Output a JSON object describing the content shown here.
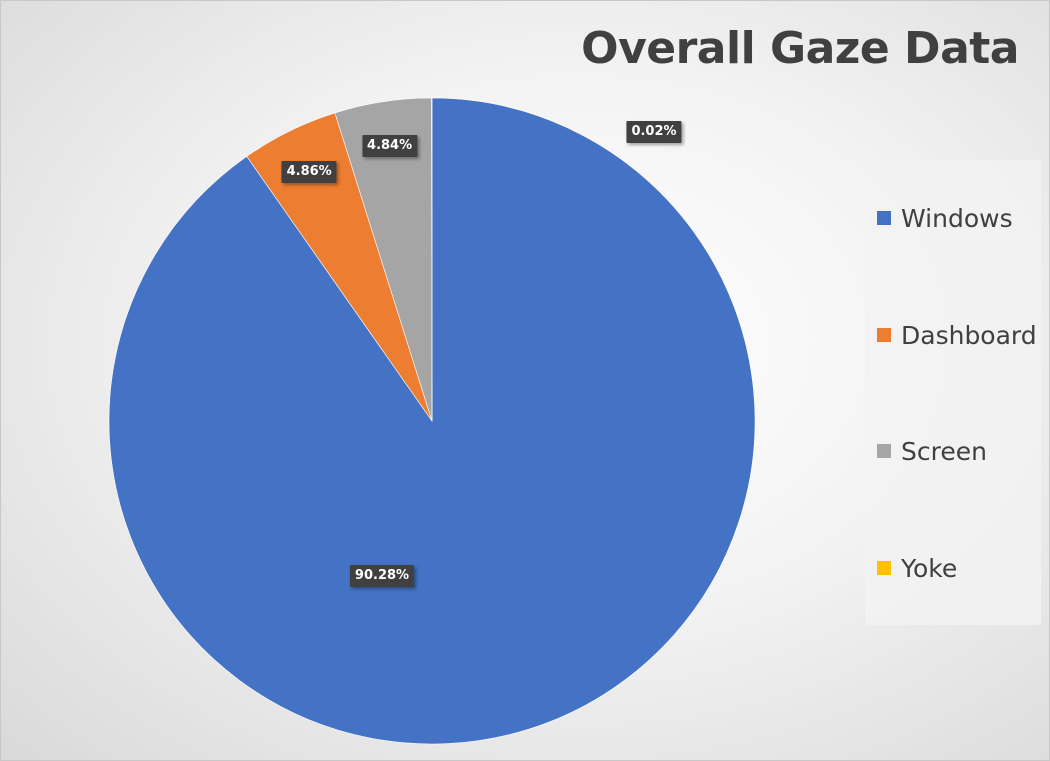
{
  "chart_data": {
    "type": "pie",
    "title": "Overall Gaze Data",
    "categories": [
      "Windows",
      "Dashboard",
      "Screen",
      "Yoke"
    ],
    "values": [
      90.28,
      4.86,
      4.84,
      0.02
    ],
    "value_labels": [
      "90.28%",
      "4.86%",
      "4.84%",
      "0.02%"
    ],
    "colors": [
      "#4472C4",
      "#ED7D31",
      "#A5A5A5",
      "#FFC000"
    ],
    "start_angle_deg": 0,
    "direction": "clockwise",
    "legend_position": "right"
  },
  "legend": {
    "items": [
      {
        "label": "Windows",
        "color": "#4472C4"
      },
      {
        "label": "Dashboard",
        "color": "#ED7D31"
      },
      {
        "label": "Screen",
        "color": "#A5A5A5"
      },
      {
        "label": "Yoke",
        "color": "#FFC000"
      }
    ]
  }
}
